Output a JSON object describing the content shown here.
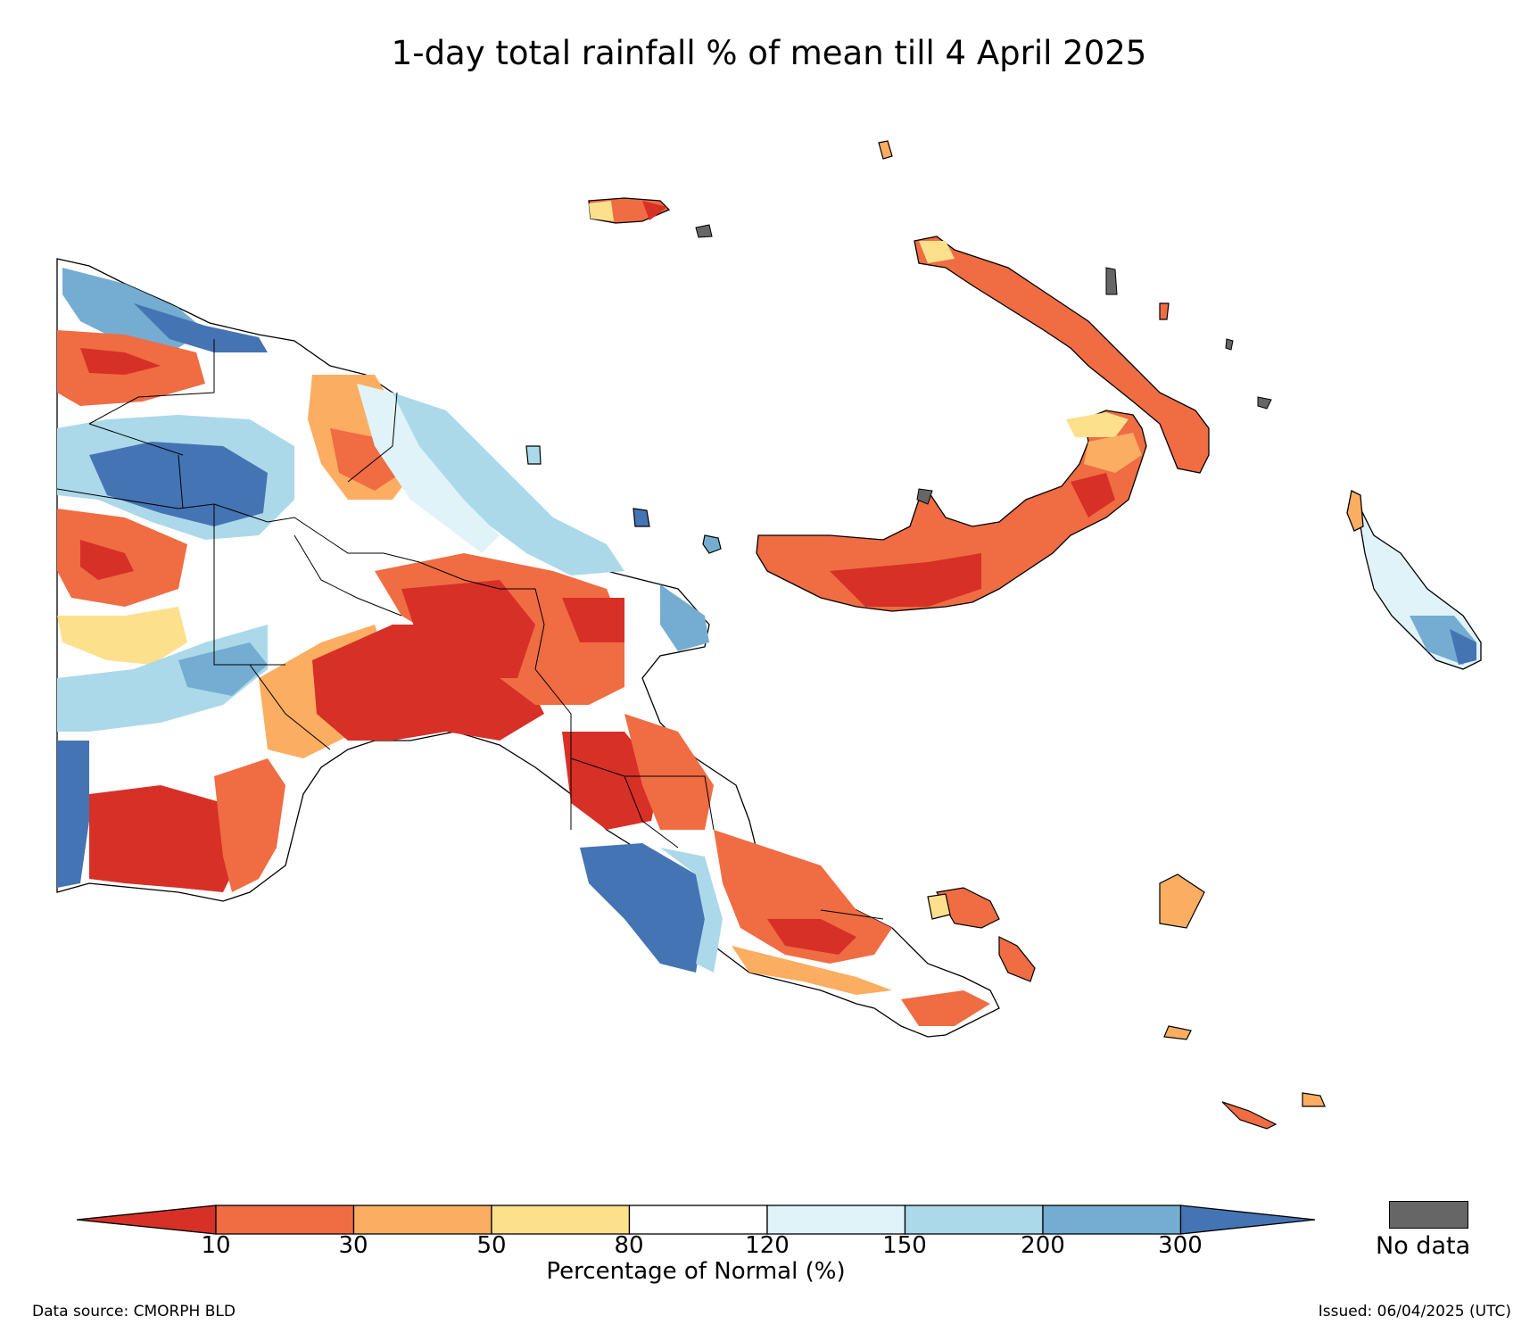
{
  "title": "1-day total rainfall % of mean till 4 April 2025",
  "legend": {
    "ticks": [
      "10",
      "30",
      "50",
      "80",
      "120",
      "150",
      "200",
      "300"
    ],
    "colors": [
      "#d73027",
      "#f06c43",
      "#fbad62",
      "#fde08c",
      "#ffffff",
      "#e0f3f8",
      "#abd9e9",
      "#74add1",
      "#4574b4"
    ],
    "title": "Percentage of Normal (%)",
    "no_data_label": "No data",
    "no_data_color": "#666666"
  },
  "footer": {
    "data_source": "Data source: CMORPH BLD",
    "issued": "Issued: 06/04/2025 (UTC)"
  }
}
